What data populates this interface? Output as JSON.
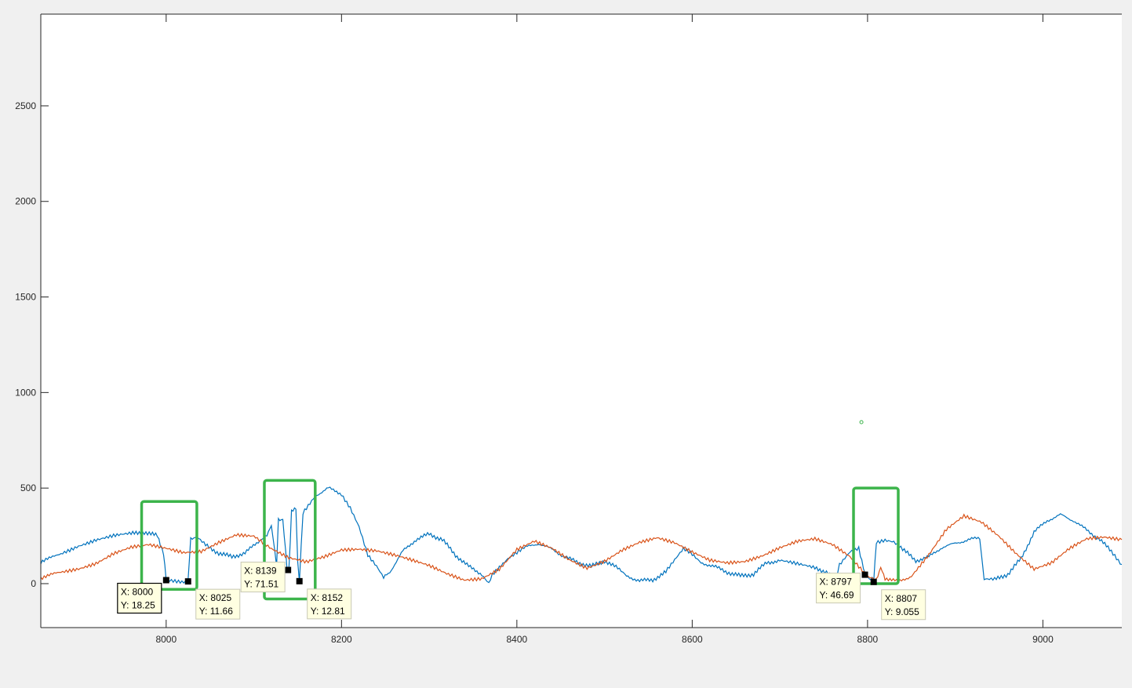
{
  "chart_data": {
    "type": "line",
    "title": "",
    "xlabel": "",
    "ylabel": "",
    "xlim": [
      7857,
      9090
    ],
    "ylim": [
      -230,
      2980
    ],
    "xticks": [
      8000,
      8200,
      8400,
      8600,
      8800,
      9000
    ],
    "yticks": [
      0,
      500,
      1000,
      1500,
      2000,
      2500
    ],
    "grid": false,
    "legend": "none",
    "series": [
      {
        "color": "#0072BD",
        "points": [
          [
            7857,
            110
          ],
          [
            7880,
            160
          ],
          [
            7900,
            200
          ],
          [
            7920,
            230
          ],
          [
            7940,
            250
          ],
          [
            7960,
            260
          ],
          [
            7975,
            270
          ],
          [
            7990,
            250
          ],
          [
            7997,
            160
          ],
          [
            8000,
            18
          ],
          [
            8010,
            14
          ],
          [
            8020,
            10
          ],
          [
            8025,
            12
          ],
          [
            8028,
            240
          ],
          [
            8035,
            240
          ],
          [
            8045,
            200
          ],
          [
            8060,
            160
          ],
          [
            8075,
            140
          ],
          [
            8090,
            160
          ],
          [
            8105,
            220
          ],
          [
            8115,
            260
          ],
          [
            8120,
            300
          ],
          [
            8126,
            90
          ],
          [
            8128,
            330
          ],
          [
            8133,
            340
          ],
          [
            8138,
            71
          ],
          [
            8140,
            75
          ],
          [
            8143,
            380
          ],
          [
            8148,
            390
          ],
          [
            8150,
            110
          ],
          [
            8152,
            13
          ],
          [
            8156,
            370
          ],
          [
            8170,
            460
          ],
          [
            8185,
            500
          ],
          [
            8200,
            470
          ],
          [
            8210,
            400
          ],
          [
            8220,
            300
          ],
          [
            8230,
            150
          ],
          [
            8240,
            90
          ],
          [
            8248,
            30
          ],
          [
            8255,
            60
          ],
          [
            8270,
            170
          ],
          [
            8285,
            230
          ],
          [
            8300,
            260
          ],
          [
            8315,
            230
          ],
          [
            8330,
            150
          ],
          [
            8345,
            90
          ],
          [
            8360,
            50
          ],
          [
            8368,
            5
          ],
          [
            8372,
            50
          ],
          [
            8390,
            130
          ],
          [
            8410,
            190
          ],
          [
            8425,
            210
          ],
          [
            8440,
            180
          ],
          [
            8455,
            140
          ],
          [
            8470,
            110
          ],
          [
            8485,
            90
          ],
          [
            8500,
            120
          ],
          [
            8515,
            80
          ],
          [
            8525,
            40
          ],
          [
            8540,
            15
          ],
          [
            8555,
            20
          ],
          [
            8570,
            60
          ],
          [
            8580,
            120
          ],
          [
            8590,
            180
          ],
          [
            8598,
            160
          ],
          [
            8610,
            110
          ],
          [
            8625,
            90
          ],
          [
            8640,
            60
          ],
          [
            8655,
            40
          ],
          [
            8670,
            50
          ],
          [
            8685,
            110
          ],
          [
            8700,
            120
          ],
          [
            8720,
            100
          ],
          [
            8740,
            80
          ],
          [
            8755,
            60
          ],
          [
            8762,
            0
          ],
          [
            8768,
            100
          ],
          [
            8780,
            170
          ],
          [
            8790,
            190
          ],
          [
            8797,
            47
          ],
          [
            8802,
            30
          ],
          [
            8805,
            20
          ],
          [
            8807,
            9
          ],
          [
            8810,
            220
          ],
          [
            8820,
            230
          ],
          [
            8830,
            220
          ],
          [
            8840,
            180
          ],
          [
            8855,
            120
          ],
          [
            8870,
            140
          ],
          [
            8885,
            190
          ],
          [
            8900,
            210
          ],
          [
            8915,
            230
          ],
          [
            8928,
            240
          ],
          [
            8933,
            20
          ],
          [
            8945,
            20
          ],
          [
            8960,
            50
          ],
          [
            8975,
            130
          ],
          [
            8990,
            270
          ],
          [
            9005,
            330
          ],
          [
            9020,
            360
          ],
          [
            9035,
            330
          ],
          [
            9050,
            280
          ],
          [
            9065,
            230
          ],
          [
            9080,
            160
          ],
          [
            9090,
            100
          ]
        ]
      },
      {
        "color": "#D95319",
        "points": [
          [
            7857,
            30
          ],
          [
            7880,
            60
          ],
          [
            7900,
            80
          ],
          [
            7920,
            110
          ],
          [
            7940,
            160
          ],
          [
            7960,
            190
          ],
          [
            7980,
            200
          ],
          [
            8000,
            180
          ],
          [
            8020,
            160
          ],
          [
            8040,
            170
          ],
          [
            8060,
            220
          ],
          [
            8080,
            260
          ],
          [
            8100,
            250
          ],
          [
            8120,
            180
          ],
          [
            8140,
            130
          ],
          [
            8160,
            110
          ],
          [
            8180,
            140
          ],
          [
            8200,
            180
          ],
          [
            8220,
            185
          ],
          [
            8240,
            175
          ],
          [
            8260,
            150
          ],
          [
            8280,
            120
          ],
          [
            8300,
            90
          ],
          [
            8320,
            50
          ],
          [
            8340,
            20
          ],
          [
            8360,
            30
          ],
          [
            8380,
            80
          ],
          [
            8400,
            180
          ],
          [
            8420,
            220
          ],
          [
            8440,
            180
          ],
          [
            8460,
            120
          ],
          [
            8480,
            80
          ],
          [
            8500,
            120
          ],
          [
            8520,
            180
          ],
          [
            8540,
            220
          ],
          [
            8560,
            240
          ],
          [
            8580,
            210
          ],
          [
            8600,
            160
          ],
          [
            8620,
            120
          ],
          [
            8640,
            110
          ],
          [
            8660,
            120
          ],
          [
            8680,
            150
          ],
          [
            8700,
            190
          ],
          [
            8720,
            220
          ],
          [
            8740,
            230
          ],
          [
            8760,
            200
          ],
          [
            8780,
            140
          ],
          [
            8790,
            90
          ],
          [
            8800,
            40
          ],
          [
            8810,
            25
          ],
          [
            8815,
            80
          ],
          [
            8820,
            30
          ],
          [
            8835,
            10
          ],
          [
            8850,
            40
          ],
          [
            8870,
            150
          ],
          [
            8890,
            280
          ],
          [
            8910,
            350
          ],
          [
            8930,
            320
          ],
          [
            8950,
            250
          ],
          [
            8970,
            160
          ],
          [
            8990,
            80
          ],
          [
            9010,
            110
          ],
          [
            9030,
            180
          ],
          [
            9050,
            230
          ],
          [
            9070,
            240
          ],
          [
            9090,
            230
          ]
        ]
      }
    ],
    "markers": [
      {
        "x": 8000,
        "y": 18.25
      },
      {
        "x": 8025,
        "y": 11.66
      },
      {
        "x": 8139,
        "y": 71.51
      },
      {
        "x": 8152,
        "y": 12.81
      },
      {
        "x": 8797,
        "y": 46.69
      },
      {
        "x": 8807,
        "y": 9.055
      }
    ],
    "datatips": [
      {
        "line1": "X: 8000",
        "line2": "Y: 18.25",
        "selected": true
      },
      {
        "line1": "X: 8025",
        "line2": "Y: 11.66",
        "selected": false
      },
      {
        "line1": "X: 8139",
        "line2": "Y: 71.51",
        "selected": false
      },
      {
        "line1": "X: 8152",
        "line2": "Y: 12.81",
        "selected": false
      },
      {
        "line1": "X: 8797",
        "line2": "Y: 46.69",
        "selected": false
      },
      {
        "line1": "X: 8807",
        "line2": "Y: 9.055",
        "selected": false
      }
    ],
    "highlight_boxes": [
      {
        "x0": 7972,
        "x1": 8035,
        "y0": -30,
        "y1": 430,
        "color": "#3CB44B"
      },
      {
        "x0": 8112,
        "x1": 8170,
        "y0": -80,
        "y1": 540,
        "color": "#3CB44B"
      },
      {
        "x0": 8784,
        "x1": 8835,
        "y0": 0,
        "y1": 500,
        "color": "#3CB44B"
      }
    ],
    "stray_marker": {
      "x": 8793,
      "y": 845,
      "color": "#3CB44B"
    }
  }
}
